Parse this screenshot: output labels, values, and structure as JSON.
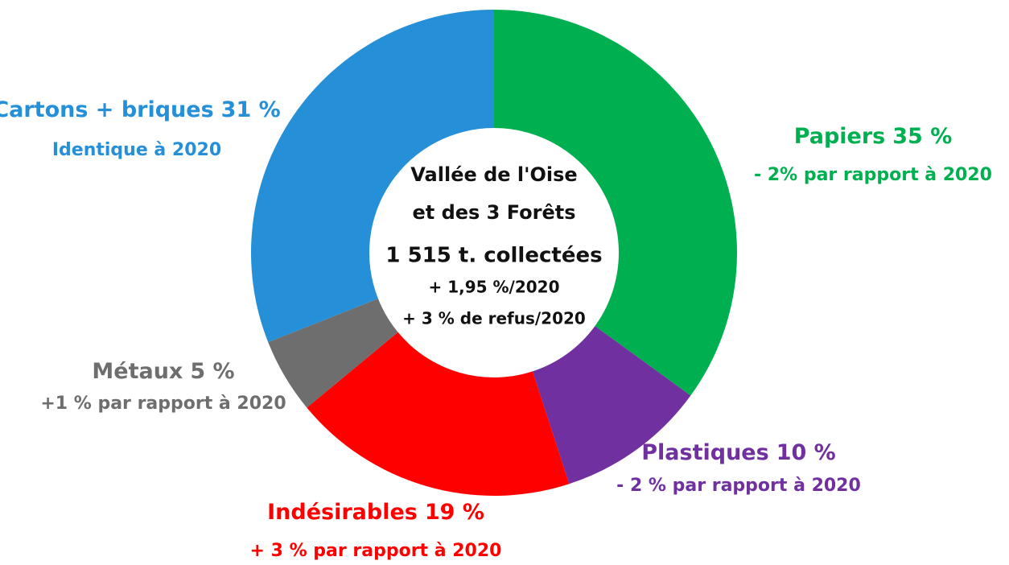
{
  "chart_data": {
    "type": "donut",
    "categories": [
      "Papiers",
      "Plastiques",
      "Indésirables",
      "Métaux",
      "Cartons + briques"
    ],
    "values": [
      35,
      10,
      19,
      5,
      31
    ],
    "value_labels": [
      "35 %",
      "10 %",
      "19 %",
      "5 %",
      "31 %"
    ],
    "colors": [
      "#00b050",
      "#7030a0",
      "#ff0000",
      "#6e6e6e",
      "#258fd8"
    ],
    "annotations": [
      "- 2% par rapport à 2020",
      "- 2 % par rapport à 2020",
      "+ 3 % par rapport à 2020",
      "+1 % par rapport à 2020",
      "Identique à 2020"
    ],
    "center_text": [
      "Vallée de l'Oise",
      "et des 3 Forêts",
      "1 515 t. collectées",
      "+ 1,95 %/2020",
      "+ 3 % de refus/2020"
    ]
  }
}
